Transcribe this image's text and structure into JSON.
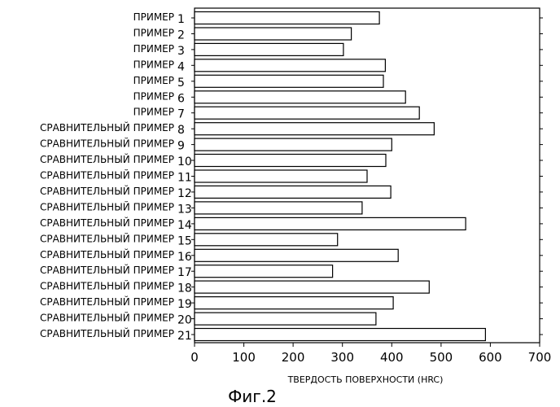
{
  "figure_caption": "Фиг.2",
  "chart_data": {
    "type": "bar",
    "orientation": "horizontal",
    "categories": [
      {
        "label": "ПРИМЕР",
        "num": "1"
      },
      {
        "label": "ПРИМЕР",
        "num": "2"
      },
      {
        "label": "ПРИМЕР",
        "num": "3"
      },
      {
        "label": "ПРИМЕР",
        "num": "4"
      },
      {
        "label": "ПРИМЕР",
        "num": "5"
      },
      {
        "label": "ПРИМЕР",
        "num": "6"
      },
      {
        "label": "ПРИМЕР",
        "num": "7"
      },
      {
        "label": "СРАВНИТЕЛЬНЫЙ ПРИМЕР",
        "num": "8"
      },
      {
        "label": "СРАВНИТЕЛЬНЫЙ ПРИМЕР",
        "num": "9"
      },
      {
        "label": "СРАВНИТЕЛЬНЫЙ ПРИМЕР",
        "num": "10"
      },
      {
        "label": "СРАВНИТЕЛЬНЫЙ ПРИМЕР",
        "num": "11"
      },
      {
        "label": "СРАВНИТЕЛЬНЫЙ ПРИМЕР",
        "num": "12"
      },
      {
        "label": "СРАВНИТЕЛЬНЫЙ ПРИМЕР",
        "num": "13"
      },
      {
        "label": "СРАВНИТЕЛЬНЫЙ ПРИМЕР",
        "num": "14"
      },
      {
        "label": "СРАВНИТЕЛЬНЫЙ ПРИМЕР",
        "num": "15"
      },
      {
        "label": "СРАВНИТЕЛЬНЫЙ ПРИМЕР",
        "num": "16"
      },
      {
        "label": "СРАВНИТЕЛЬНЫЙ ПРИМЕР",
        "num": "17"
      },
      {
        "label": "СРАВНИТЕЛЬНЫЙ ПРИМЕР",
        "num": "18"
      },
      {
        "label": "СРАВНИТЕЛЬНЫЙ ПРИМЕР",
        "num": "19"
      },
      {
        "label": "СРАВНИТЕЛЬНЫЙ ПРИМЕР",
        "num": "20"
      },
      {
        "label": "СРАВНИТЕЛЬНЫЙ ПРИМЕР",
        "num": "21"
      }
    ],
    "values": [
      375,
      318,
      302,
      387,
      383,
      428,
      456,
      486,
      400,
      388,
      350,
      398,
      340,
      550,
      290,
      413,
      280,
      476,
      403,
      368,
      590
    ],
    "xlabel": "ТВЕРДОСТЬ ПОВЕРХНОСТИ (HRC)",
    "ylabel": "",
    "title": "",
    "xlim": [
      0,
      700
    ],
    "xticks": [
      "0",
      "100",
      "200",
      "300",
      "400",
      "500",
      "600",
      "700"
    ],
    "grid": false,
    "bar_fill": "#ffffff",
    "bar_stroke": "#000000"
  }
}
